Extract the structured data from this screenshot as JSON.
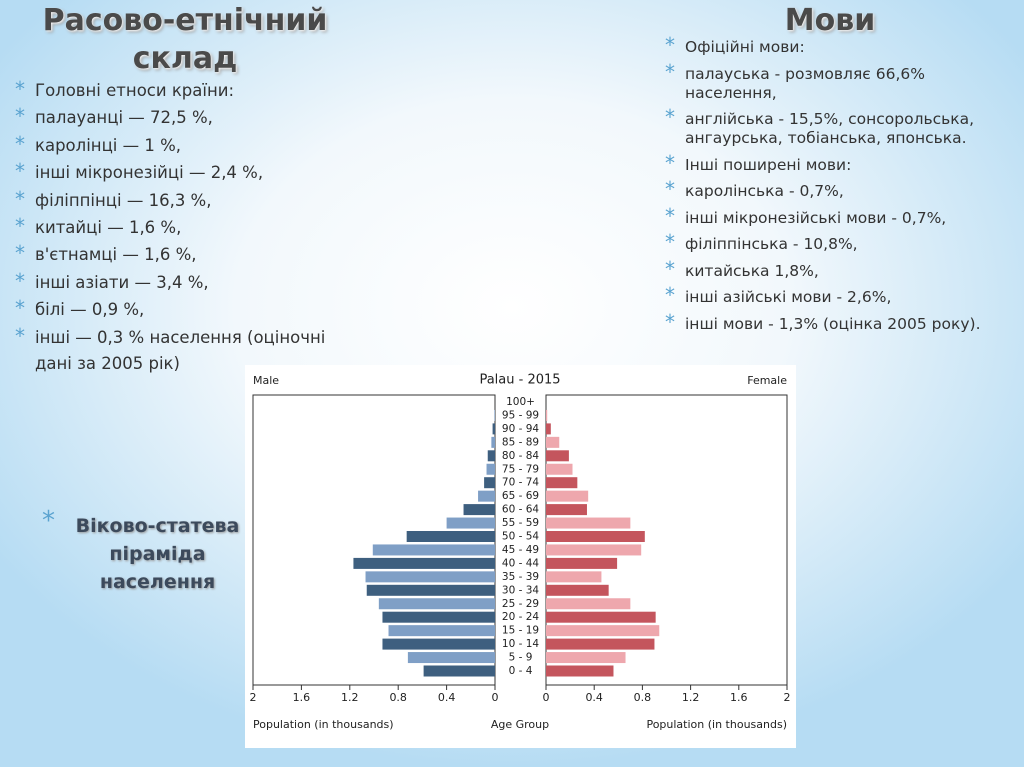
{
  "left": {
    "title": "Расово-етнічний склад",
    "items": [
      "Головні етноси країни:",
      "палауанці — 72,5 %,",
      "каролінці — 1 %,",
      "інші мікронезійці — 2,4 %,",
      "філіппінці — 16,3 %,",
      "китайці — 1,6 %,",
      "в'єтнамці — 1,6 %,",
      "інші азіати — 3,4 %,",
      "білі — 0,9 %,",
      "інші — 0,3 % населення (оціночні дані за 2005 рік)"
    ]
  },
  "right": {
    "title": "Мови",
    "items": [
      "Офіційні мови:",
      "палауська - розмовляє 66,6% населення,",
      "англійська - 15,5%, сонсорольська, ангаурська, тобіанська, японська.",
      "Інші поширені мови:",
      "каролінська - 0,7%,",
      "інші мікронезійські мови - 0,7%,",
      "філіппінська - 10,8%,",
      "китайська 1,8%,",
      "інші азійські мови - 2,6%,",
      "інші мови - 1,3% (оцінка 2005 року)."
    ]
  },
  "pyramid_caption": "Віково-статева піраміда населення",
  "chart_data": {
    "type": "pyramid",
    "title": "Palau - 2015",
    "categories": [
      "0 - 4",
      "5 - 9",
      "10 - 14",
      "15 - 19",
      "20 - 24",
      "25 - 29",
      "30 - 34",
      "35 - 39",
      "40 - 44",
      "45 - 49",
      "50 - 54",
      "55 - 59",
      "60 - 64",
      "65 - 69",
      "70 - 74",
      "75 - 79",
      "80 - 84",
      "85 - 89",
      "90 - 94",
      "95 - 99",
      "100+"
    ],
    "category_axis_label": "Age Group",
    "series": [
      {
        "name": "Male",
        "colors": [
          "#3e5f7f",
          "#7f9fc6"
        ],
        "values": [
          0.59,
          0.72,
          0.93,
          0.88,
          0.93,
          0.96,
          1.06,
          1.07,
          1.17,
          1.01,
          0.73,
          0.4,
          0.26,
          0.14,
          0.09,
          0.07,
          0.06,
          0.03,
          0.02,
          0.005,
          0
        ],
        "xlabel": "Population (in thousands)"
      },
      {
        "name": "Female",
        "colors": [
          "#c4555d",
          "#eea7ad"
        ],
        "values": [
          0.56,
          0.66,
          0.9,
          0.94,
          0.91,
          0.7,
          0.52,
          0.46,
          0.59,
          0.79,
          0.82,
          0.7,
          0.34,
          0.35,
          0.26,
          0.22,
          0.19,
          0.11,
          0.04,
          0.01,
          0
        ],
        "xlabel": "Population (in thousands)"
      }
    ],
    "xlim": [
      0,
      2
    ],
    "xticks": [
      0,
      0.4,
      0.8,
      1.2,
      1.6,
      2
    ]
  }
}
